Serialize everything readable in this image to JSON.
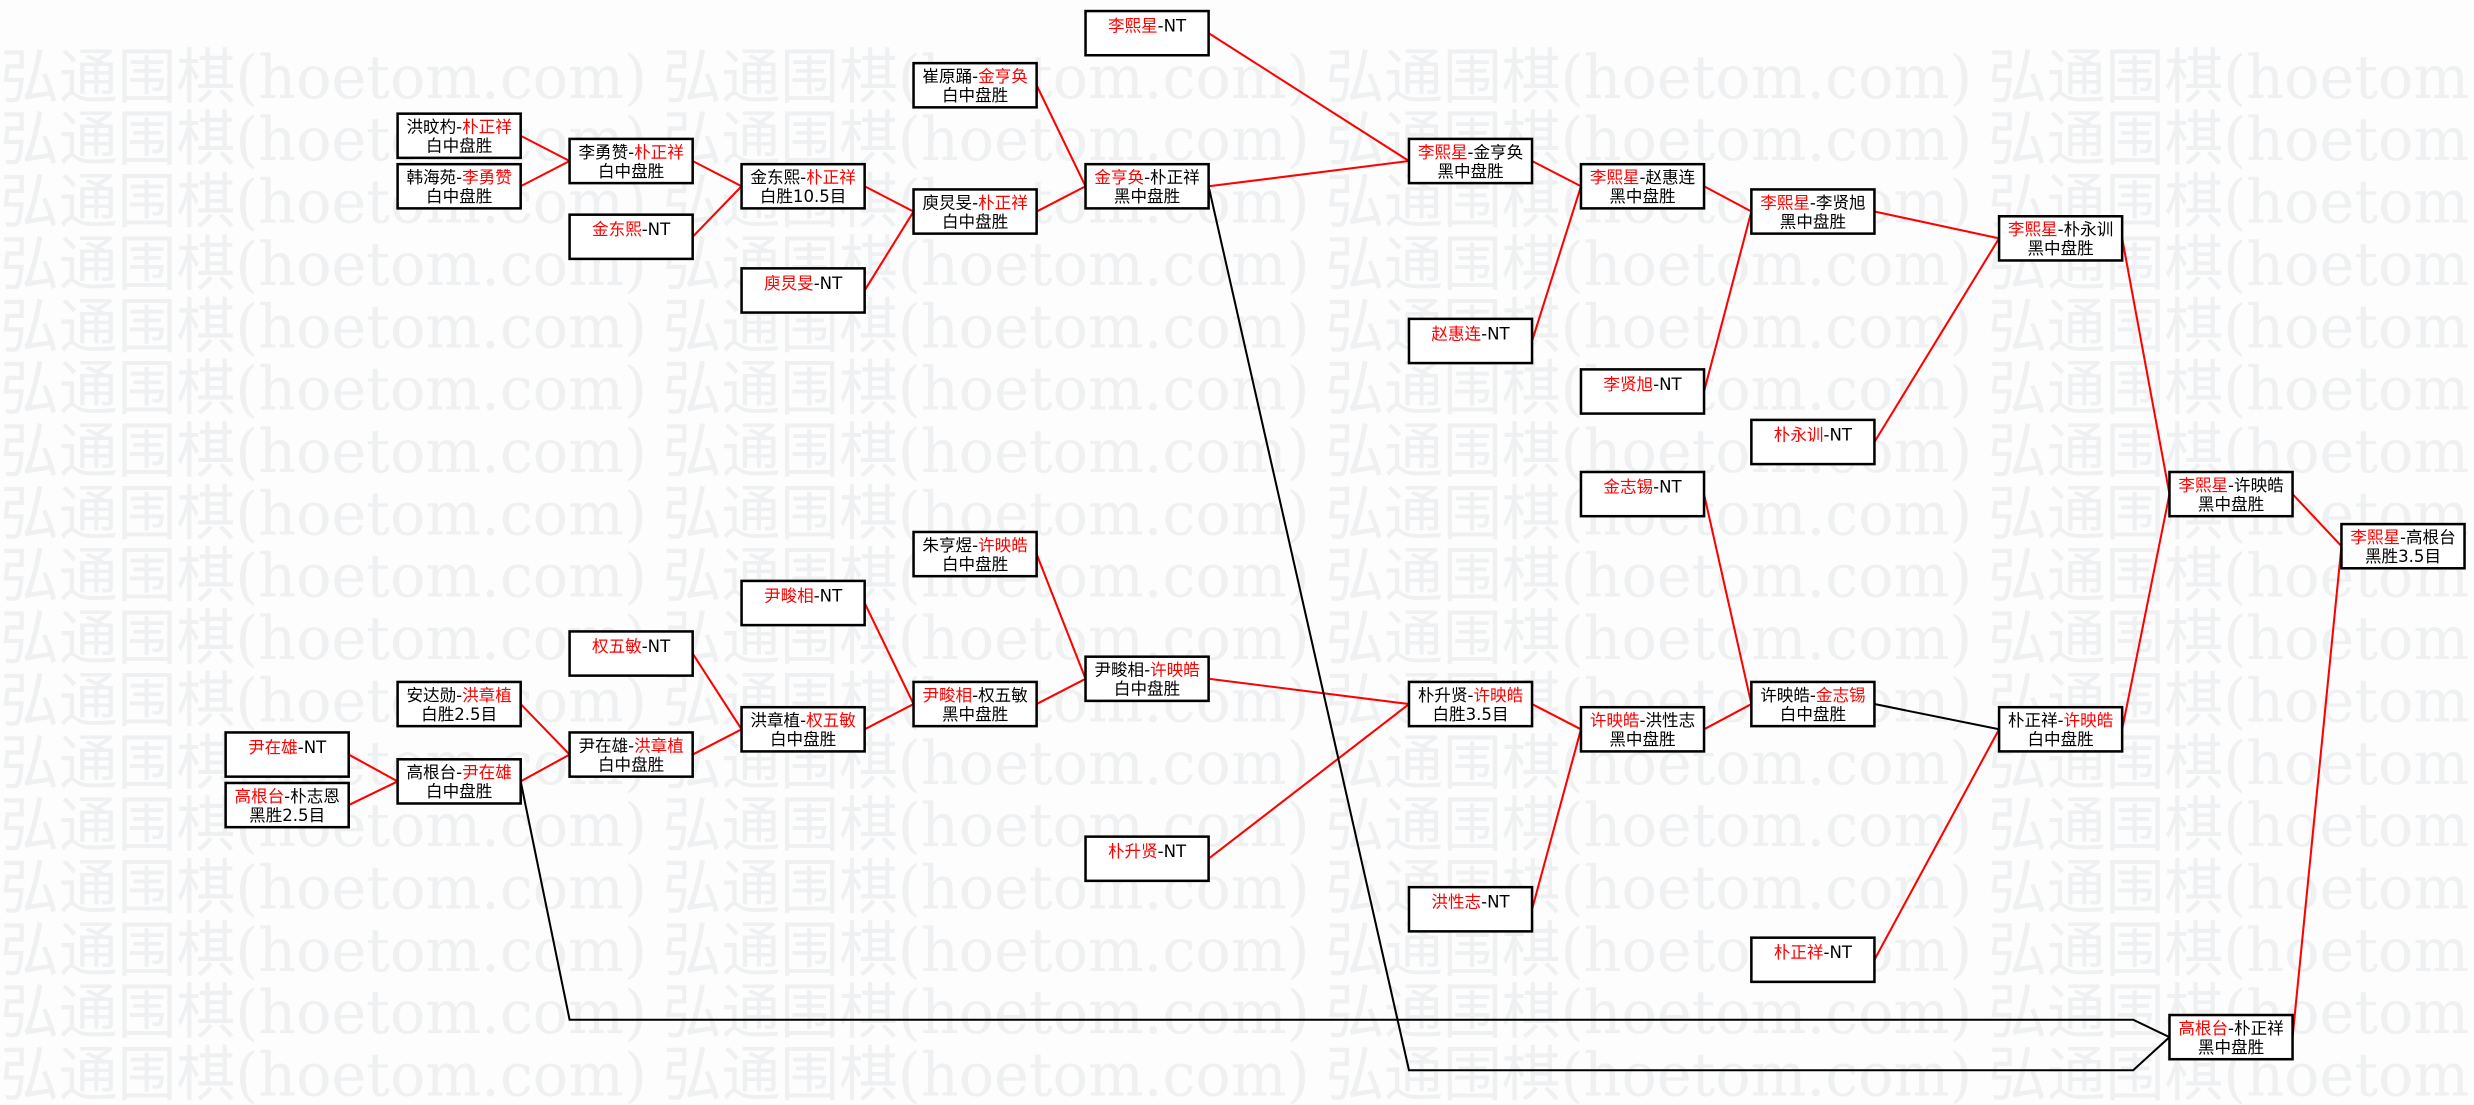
{
  "watermark": "弘通围棋(hoetom.com)",
  "colors": {
    "winner": "#ff0000",
    "text": "#000000",
    "line_win": "#ff0000",
    "line_other": "#000000",
    "watermark": "#eef0f1"
  },
  "separator": "-",
  "matches": [
    {
      "id": 1,
      "p1": "洪旼杓",
      "p2": "朴正祥",
      "winner": 2,
      "result": "白中盘胜"
    },
    {
      "id": 2,
      "p1": "韩海苑",
      "p2": "李勇赞",
      "winner": 2,
      "result": "白中盘胜"
    },
    {
      "id": 3,
      "p1": "李勇赞",
      "p2": "朴正祥",
      "winner": 2,
      "result": "白中盘胜"
    },
    {
      "id": 4,
      "p1": "金东熙",
      "p2": "NT",
      "winner": 1,
      "result": ""
    },
    {
      "id": 5,
      "p1": "金东熙",
      "p2": "朴正祥",
      "winner": 2,
      "result": "白胜10.5目"
    },
    {
      "id": 6,
      "p1": "庾炅旻",
      "p2": "NT",
      "winner": 1,
      "result": ""
    },
    {
      "id": 7,
      "p1": "崔原踊",
      "p2": "金亨奂",
      "winner": 2,
      "result": "白中盘胜"
    },
    {
      "id": 8,
      "p1": "庾炅旻",
      "p2": "朴正祥",
      "winner": 2,
      "result": "白中盘胜"
    },
    {
      "id": 9,
      "p1": "李熙星",
      "p2": "NT",
      "winner": 1,
      "result": ""
    },
    {
      "id": 10,
      "p1": "金亨奂",
      "p2": "朴正祥",
      "winner": 1,
      "result": "黑中盘胜"
    },
    {
      "id": 11,
      "p1": "李熙星",
      "p2": "金亨奂",
      "winner": 1,
      "result": "黑中盘胜"
    },
    {
      "id": 12,
      "p1": "赵惠连",
      "p2": "NT",
      "winner": 1,
      "result": ""
    },
    {
      "id": 13,
      "p1": "李熙星",
      "p2": "赵惠连",
      "winner": 1,
      "result": "黑中盘胜"
    },
    {
      "id": 14,
      "p1": "李贤旭",
      "p2": "NT",
      "winner": 1,
      "result": ""
    },
    {
      "id": 15,
      "p1": "李熙星",
      "p2": "李贤旭",
      "winner": 1,
      "result": "黑中盘胜"
    },
    {
      "id": 16,
      "p1": "朴永训",
      "p2": "NT",
      "winner": 1,
      "result": ""
    },
    {
      "id": 17,
      "p1": "李熙星",
      "p2": "朴永训",
      "winner": 1,
      "result": "黑中盘胜"
    },
    {
      "id": 18,
      "p1": "金志锡",
      "p2": "NT",
      "winner": 1,
      "result": ""
    },
    {
      "id": 19,
      "p1": "李熙星",
      "p2": "许映皓",
      "winner": 1,
      "result": "黑中盘胜"
    },
    {
      "id": 20,
      "p1": "李熙星",
      "p2": "高根台",
      "winner": 1,
      "result": "黑胜3.5目"
    },
    {
      "id": 21,
      "p1": "朱亨煜",
      "p2": "许映皓",
      "winner": 2,
      "result": "白中盘胜"
    },
    {
      "id": 22,
      "p1": "尹畯相",
      "p2": "NT",
      "winner": 1,
      "result": ""
    },
    {
      "id": 23,
      "p1": "权五敏",
      "p2": "NT",
      "winner": 1,
      "result": ""
    },
    {
      "id": 24,
      "p1": "安达勋",
      "p2": "洪章植",
      "winner": 2,
      "result": "白胜2.5目"
    },
    {
      "id": 25,
      "p1": "尹在雄",
      "p2": "NT",
      "winner": 1,
      "result": ""
    },
    {
      "id": 26,
      "p1": "高根台",
      "p2": "朴志恩",
      "winner": 1,
      "result": "黑胜2.5目"
    },
    {
      "id": 27,
      "p1": "高根台",
      "p2": "尹在雄",
      "winner": 2,
      "result": "白中盘胜"
    },
    {
      "id": 28,
      "p1": "尹在雄",
      "p2": "洪章植",
      "winner": 2,
      "result": "白中盘胜"
    },
    {
      "id": 29,
      "p1": "洪章植",
      "p2": "权五敏",
      "winner": 2,
      "result": "白中盘胜"
    },
    {
      "id": 30,
      "p1": "尹畯相",
      "p2": "权五敏",
      "winner": 1,
      "result": "黑中盘胜"
    },
    {
      "id": 31,
      "p1": "尹畯相",
      "p2": "许映皓",
      "winner": 2,
      "result": "白中盘胜"
    },
    {
      "id": 32,
      "p1": "朴升贤",
      "p2": "NT",
      "winner": 1,
      "result": ""
    },
    {
      "id": 33,
      "p1": "朴升贤",
      "p2": "许映皓",
      "winner": 2,
      "result": "白胜3.5目"
    },
    {
      "id": 34,
      "p1": "洪性志",
      "p2": "NT",
      "winner": 1,
      "result": ""
    },
    {
      "id": 35,
      "p1": "许映皓",
      "p2": "洪性志",
      "winner": 1,
      "result": "黑中盘胜"
    },
    {
      "id": 36,
      "p1": "许映皓",
      "p2": "金志锡",
      "winner": 2,
      "result": "白中盘胜"
    },
    {
      "id": 37,
      "p1": "朴正祥",
      "p2": "NT",
      "winner": 1,
      "result": ""
    },
    {
      "id": 38,
      "p1": "朴正祥",
      "p2": "许映皓",
      "winner": 2,
      "result": "白中盘胜"
    },
    {
      "id": 39,
      "p1": "高根台",
      "p2": "朴正祥",
      "winner": 1,
      "result": "黑中盘胜"
    }
  ],
  "edges": [
    {
      "from": 1,
      "to": 3,
      "color": "red"
    },
    {
      "from": 2,
      "to": 3,
      "color": "red"
    },
    {
      "from": 3,
      "to": 5,
      "color": "red"
    },
    {
      "from": 4,
      "to": 5,
      "color": "red"
    },
    {
      "from": 5,
      "to": 8,
      "color": "red"
    },
    {
      "from": 6,
      "to": 8,
      "color": "red"
    },
    {
      "from": 7,
      "to": 10,
      "color": "red"
    },
    {
      "from": 8,
      "to": 10,
      "color": "red"
    },
    {
      "from": 9,
      "to": 11,
      "color": "red"
    },
    {
      "from": 10,
      "to": 11,
      "color": "red"
    },
    {
      "from": 11,
      "to": 13,
      "color": "red"
    },
    {
      "from": 12,
      "to": 13,
      "color": "red"
    },
    {
      "from": 13,
      "to": 15,
      "color": "red"
    },
    {
      "from": 14,
      "to": 15,
      "color": "red"
    },
    {
      "from": 15,
      "to": 17,
      "color": "red"
    },
    {
      "from": 16,
      "to": 17,
      "color": "red"
    },
    {
      "from": 17,
      "to": 19,
      "color": "red"
    },
    {
      "from": 38,
      "to": 19,
      "color": "red"
    },
    {
      "from": 19,
      "to": 20,
      "color": "red"
    },
    {
      "from": 39,
      "to": 20,
      "color": "red"
    },
    {
      "from": 25,
      "to": 27,
      "color": "red"
    },
    {
      "from": 26,
      "to": 27,
      "color": "red"
    },
    {
      "from": 24,
      "to": 28,
      "color": "red"
    },
    {
      "from": 27,
      "to": 28,
      "color": "red"
    },
    {
      "from": 28,
      "to": 29,
      "color": "red"
    },
    {
      "from": 23,
      "to": 29,
      "color": "red"
    },
    {
      "from": 29,
      "to": 30,
      "color": "red"
    },
    {
      "from": 22,
      "to": 30,
      "color": "red"
    },
    {
      "from": 30,
      "to": 31,
      "color": "red"
    },
    {
      "from": 21,
      "to": 31,
      "color": "red"
    },
    {
      "from": 31,
      "to": 33,
      "color": "red"
    },
    {
      "from": 32,
      "to": 33,
      "color": "red"
    },
    {
      "from": 33,
      "to": 35,
      "color": "red"
    },
    {
      "from": 34,
      "to": 35,
      "color": "red"
    },
    {
      "from": 35,
      "to": 36,
      "color": "red"
    },
    {
      "from": 18,
      "to": 36,
      "color": "red"
    },
    {
      "from": 36,
      "to": 38,
      "color": "black"
    },
    {
      "from": 37,
      "to": 38,
      "color": "red"
    },
    {
      "from": 27,
      "to": 39,
      "color": "black"
    },
    {
      "from": 10,
      "to": 39,
      "color": "black"
    }
  ]
}
